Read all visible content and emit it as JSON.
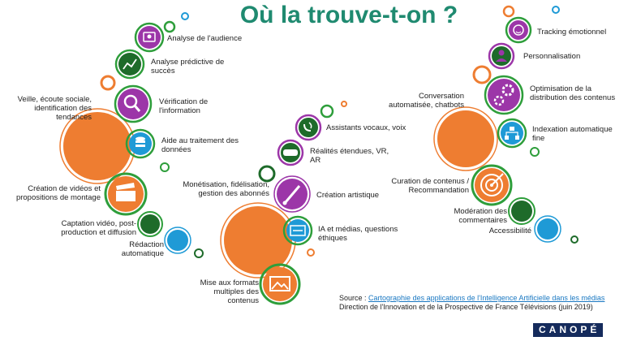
{
  "title": "Où la trouve-t-on ?",
  "labels": {
    "audience": "Analyse de l'audience",
    "predictive": "Analyse prédictive de succès",
    "veille": "Veille, écoute sociale, identification des tendances",
    "verification": "Vérification de l'information",
    "data": "Aide au traitement des données",
    "creation_video": "Création de vidéos et propositions de montage",
    "captation": "Captation vidéo, post-production et diffusion",
    "redaction": "Rédaction automatique",
    "assistants": "Assistants vocaux, voix",
    "xr": "Réalités étendues, VR, AR",
    "monetisation": "Monétisation, fidélisation, gestion des abonnés",
    "creation_artistique": "Création artistique",
    "ethique": "IA et médias, questions éthiques",
    "formats": "Mise aux formats multiples des contenus",
    "tracking": "Tracking émotionnel",
    "personnalisation": "Personnalisation",
    "conversation": "Conversation automatisée, chatbots",
    "optimisation": "Optimisation de la distribution des contenus",
    "indexation": "Indexation automatique fine",
    "curation": "Curation de contenus / Recommandation",
    "moderation": "Modération des commentaires",
    "accessibilite": "Accessibilité"
  },
  "source": {
    "prefix": "Source : ",
    "link": "Cartographie des applications de l'Intelligence Artificielle dans les médias",
    "line2": "Direction de l'Innovation et de la Prospective de France Télévisions (juin 2019)"
  },
  "brand": "CANOPÉ",
  "colors": {
    "orange": "#ee7d31",
    "green": "#2e9e3b",
    "dark_green": "#1e6b2a",
    "purple": "#9c36a8",
    "blue": "#1f9ad6",
    "title": "#1f8a70"
  }
}
